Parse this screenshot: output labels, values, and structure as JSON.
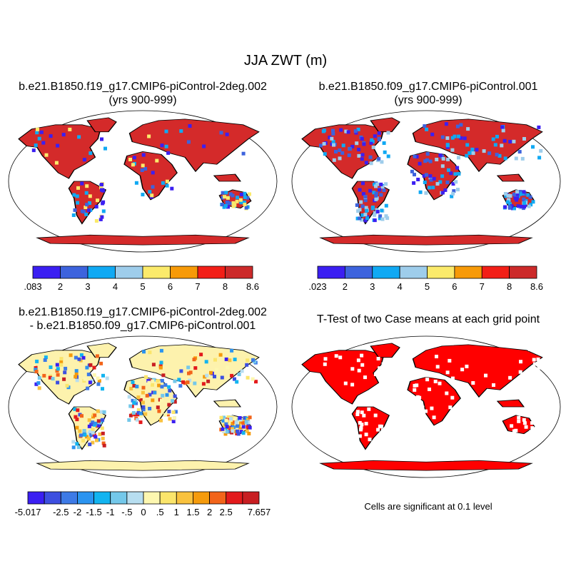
{
  "title": "JJA ZWT (m)",
  "panels": [
    {
      "id": "case1",
      "title_lines": [
        "b.e21.B1850.f19_g17.CMIP6-piControl-2deg.002",
        "(yrs 900-999)"
      ],
      "colorbar": {
        "labels": [
          ".083",
          "2",
          "3",
          "4",
          "5",
          "6",
          "7",
          "8",
          "8.6"
        ],
        "colors": [
          "#3b1ff2",
          "#3d63dd",
          "#10a9f3",
          "#9ecdeb",
          "#fbea6b",
          "#f79a08",
          "#f21f17",
          "#cc2a2a"
        ]
      }
    },
    {
      "id": "case2",
      "title_lines": [
        "b.e21.B1850.f09_g17.CMIP6-piControl.001",
        "(yrs 900-999)"
      ],
      "colorbar": {
        "labels": [
          ".023",
          "2",
          "3",
          "4",
          "5",
          "6",
          "7",
          "8",
          "8.6"
        ],
        "colors": [
          "#3b1ff2",
          "#3d63dd",
          "#10a9f3",
          "#9ecdeb",
          "#fbea6b",
          "#f79a08",
          "#f21f17",
          "#cc2a2a"
        ]
      }
    },
    {
      "id": "difference",
      "title_lines": [
        "b.e21.B1850.f19_g17.CMIP6-piControl-2deg.002",
        "- b.e21.B1850.f09_g17.CMIP6-piControl.001"
      ],
      "colorbar": {
        "labels": [
          "-5.017",
          "-2.5",
          "-2",
          "-1.5",
          "-1",
          "-.5",
          "0",
          ".5",
          "1",
          "1.5",
          "2",
          "2.5",
          "7.657"
        ],
        "label_slots": [
          0,
          2,
          3,
          4,
          5,
          6,
          7,
          8,
          9,
          10,
          11,
          12,
          14
        ],
        "colors": [
          "#3b1ff2",
          "#3d4fe0",
          "#3d7ae6",
          "#2b94f0",
          "#12b4f0",
          "#74c8ea",
          "#b7def0",
          "#fdf7b0",
          "#fbe56b",
          "#f9c23e",
          "#f59b0c",
          "#f2641a",
          "#e31a1c",
          "#c81e22"
        ]
      }
    },
    {
      "id": "ttest",
      "title_lines": [
        "T-Test of two Case means at each grid point"
      ],
      "note": "Cells are significant at 0.1 level",
      "significant_color": "#ff0000"
    }
  ]
}
